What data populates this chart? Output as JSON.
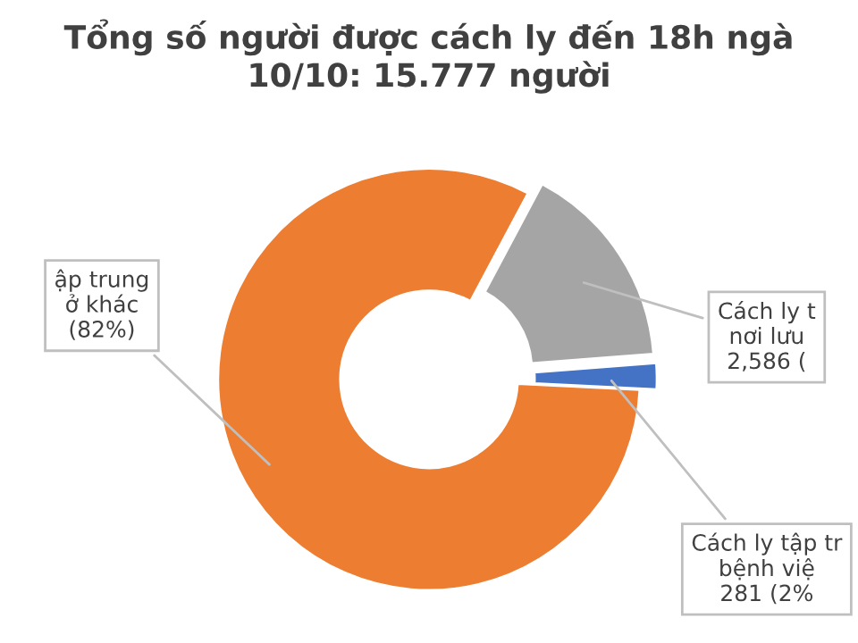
{
  "chart_data": {
    "type": "donut",
    "title": "Tổng số người được cách ly đến 18h ngà\n10/10: 15.777 người",
    "categories": [
      "ập trung\nở khác\n(82%)",
      "Cách ly t\nnơi lưu\n2,586 (",
      "Cách ly tập tr\nbệnh việ\n281 (2%"
    ],
    "values": [
      82,
      16,
      2
    ],
    "colors": [
      "#ed7d31",
      "#a5a5a5",
      "#4472c4"
    ],
    "legend": false
  }
}
